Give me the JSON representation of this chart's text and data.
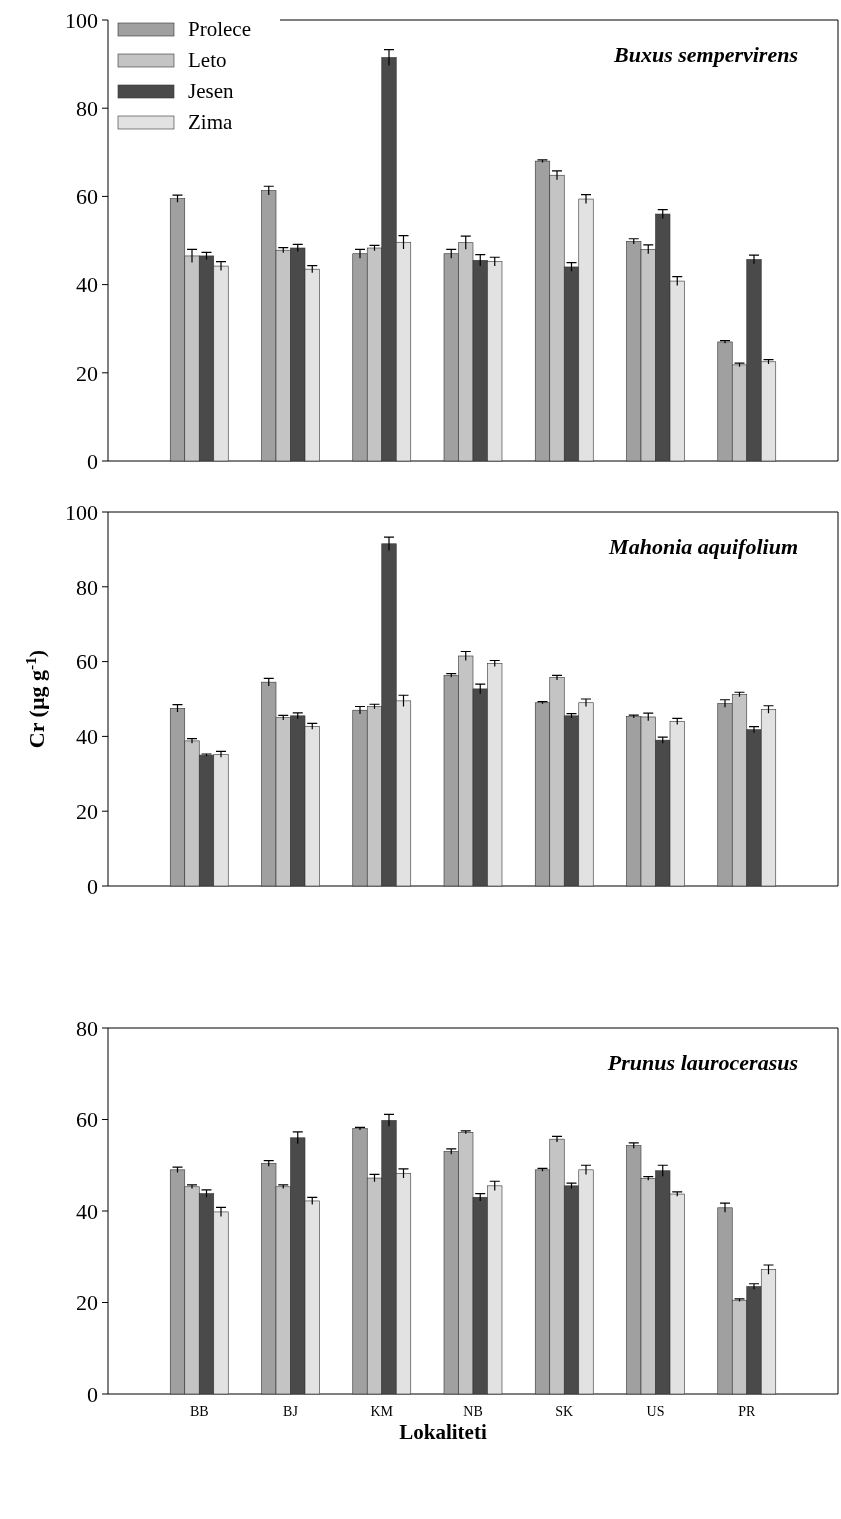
{
  "chart_data": [
    {
      "type": "bar",
      "title": "Buxus sempervirens",
      "categories": [
        null,
        null,
        null,
        null,
        null,
        null,
        null
      ],
      "ylim": [
        0,
        100
      ],
      "yticks": [
        0,
        20,
        40,
        60,
        80,
        100
      ],
      "legend": "top left",
      "tick_labels": "y",
      "series": [
        {
          "name": "Prolece",
          "color": "#a0a0a0",
          "values": [
            59.5,
            61.3,
            47,
            47,
            68,
            49.8,
            27
          ],
          "errors": [
            0.8,
            1,
            1,
            1,
            0.3,
            0.6,
            0.3
          ]
        },
        {
          "name": "Leto",
          "color": "#c4c4c4",
          "values": [
            46.5,
            47.8,
            48.3,
            49.5,
            64.8,
            48,
            21.8
          ],
          "errors": [
            1.5,
            0.6,
            0.6,
            1.5,
            1,
            1,
            0.4
          ]
        },
        {
          "name": "Jesen",
          "color": "#4a4a4a",
          "values": [
            46.5,
            48.3,
            91.5,
            45.5,
            44,
            56,
            45.7
          ],
          "errors": [
            0.8,
            0.8,
            1.8,
            1.3,
            1,
            1,
            1
          ]
        },
        {
          "name": "Zima",
          "color": "#e2e2e2",
          "values": [
            44.2,
            43.5,
            49.6,
            45.2,
            59.4,
            40.8,
            22.5
          ],
          "errors": [
            1,
            0.8,
            1.5,
            1,
            1,
            1,
            0.5
          ]
        }
      ]
    },
    {
      "type": "bar",
      "title": "Mahonia aquifolium",
      "ylabel": "Cr (µg g$^{-1}$)",
      "categories": [
        null,
        null,
        null,
        null,
        null,
        null,
        null
      ],
      "ylim": [
        0,
        100
      ],
      "yticks": [
        0,
        20,
        40,
        60,
        80,
        100
      ],
      "tick_labels": "y",
      "series": [
        {
          "color": "#a0a0a0",
          "values": [
            47.5,
            54.5,
            47,
            56.3,
            49,
            45.3,
            48.8
          ],
          "errors": [
            1,
            1,
            1,
            0.5,
            0.3,
            0.4,
            1
          ]
        },
        {
          "color": "#c4c4c4",
          "values": [
            38.8,
            45,
            48,
            61.5,
            55.7,
            45.2,
            51.2
          ],
          "errors": [
            0.6,
            0.6,
            0.6,
            1.2,
            0.6,
            1,
            0.6
          ]
        },
        {
          "color": "#4a4a4a",
          "values": [
            35,
            45.5,
            91.5,
            52.7,
            45.5,
            39,
            41.8
          ],
          "errors": [
            0.3,
            0.8,
            1.8,
            1.3,
            0.6,
            0.8,
            0.8
          ]
        },
        {
          "color": "#e2e2e2",
          "values": [
            35.2,
            42.7,
            49.5,
            59.5,
            49,
            44,
            47.2
          ],
          "errors": [
            0.8,
            0.8,
            1.5,
            0.8,
            1,
            0.8,
            1
          ]
        }
      ]
    },
    {
      "type": "bar",
      "title": "Prunus laurocerasus",
      "xlabel": "Lokaliteti",
      "categories": [
        "BB",
        "BJ",
        "KM",
        "NB",
        "SK",
        "US",
        "PR"
      ],
      "ylim": [
        0,
        80
      ],
      "yticks": [
        0,
        20,
        40,
        60,
        80
      ],
      "series": [
        {
          "color": "#a0a0a0",
          "values": [
            49,
            50.4,
            58,
            53,
            49,
            54.3,
            40.7
          ],
          "errors": [
            0.6,
            0.6,
            0.3,
            0.6,
            0.3,
            0.6,
            1
          ]
        },
        {
          "color": "#c4c4c4",
          "values": [
            45.3,
            45.3,
            47.2,
            57.2,
            55.7,
            47.1,
            20.5
          ],
          "errors": [
            0.4,
            0.4,
            0.8,
            0.3,
            0.6,
            0.4,
            0.3
          ]
        },
        {
          "color": "#4a4a4a",
          "values": [
            43.8,
            56,
            59.8,
            43,
            45.5,
            48.8,
            23.5
          ],
          "errors": [
            0.8,
            1.3,
            1.3,
            0.8,
            0.6,
            1.2,
            0.6
          ]
        },
        {
          "color": "#e2e2e2",
          "values": [
            39.8,
            42.2,
            48.2,
            45.5,
            49,
            43.7,
            27.2
          ],
          "errors": [
            1,
            0.8,
            1,
            1,
            1,
            0.5,
            1
          ]
        }
      ]
    }
  ]
}
